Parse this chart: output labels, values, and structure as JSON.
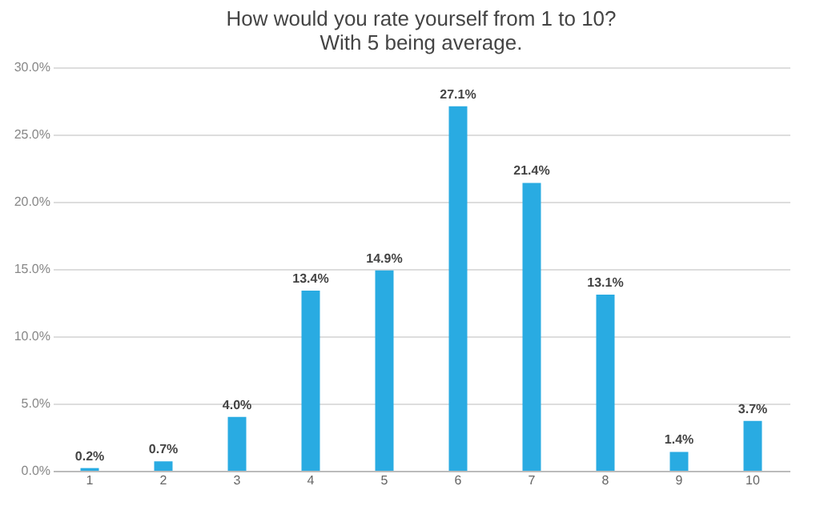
{
  "chart_data": {
    "type": "bar",
    "title": "How would you rate yourself from 1 to 10?\nWith 5 being average.",
    "categories": [
      "1",
      "2",
      "3",
      "4",
      "5",
      "6",
      "7",
      "8",
      "9",
      "10"
    ],
    "values": [
      0.2,
      0.7,
      4.0,
      13.4,
      14.9,
      27.1,
      21.4,
      13.1,
      1.4,
      3.7
    ],
    "value_labels": [
      "0.2%",
      "0.7%",
      "4.0%",
      "13.4%",
      "14.9%",
      "27.1%",
      "21.4%",
      "13.1%",
      "1.4%",
      "3.7%"
    ],
    "color": "#29abe2",
    "ylim": [
      0,
      30
    ],
    "yticks": [
      {
        "value": 0,
        "label": "0.0%"
      },
      {
        "value": 5,
        "label": "5.0%"
      },
      {
        "value": 10,
        "label": "10.0%"
      },
      {
        "value": 15,
        "label": "15.0%"
      },
      {
        "value": 20,
        "label": "20.0%"
      },
      {
        "value": 25,
        "label": "25.0%"
      },
      {
        "value": 30,
        "label": "30.0%"
      }
    ],
    "grid": "y"
  }
}
